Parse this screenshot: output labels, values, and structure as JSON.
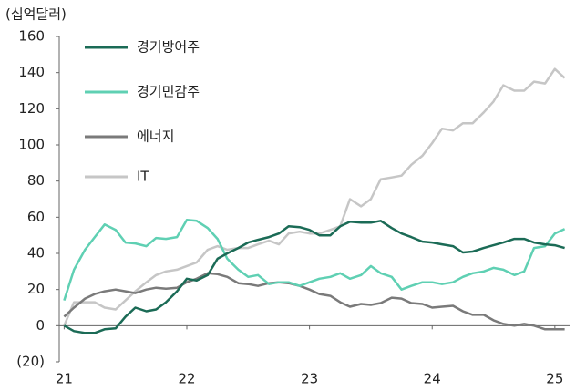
{
  "chart_data": {
    "type": "line",
    "unit_label": "(십억달러)",
    "x": [
      21.0,
      21.08,
      21.17,
      21.25,
      21.33,
      21.42,
      21.5,
      21.58,
      21.67,
      21.75,
      21.83,
      21.92,
      22.0,
      22.08,
      22.17,
      22.25,
      22.33,
      22.42,
      22.5,
      22.58,
      22.67,
      22.75,
      22.83,
      22.92,
      23.0,
      23.08,
      23.17,
      23.25,
      23.33,
      23.42,
      23.5,
      23.58,
      23.67,
      23.75,
      23.83,
      23.92,
      24.0,
      24.08,
      24.17,
      24.25,
      24.33,
      24.42,
      24.5,
      24.58,
      24.67,
      24.75,
      24.83,
      24.92,
      25.0,
      25.08
    ],
    "series": [
      {
        "name": "경기방어주",
        "color": "#1b6b56",
        "values": [
          0,
          -3,
          -4,
          -4,
          -2,
          -1.5,
          5,
          10,
          8,
          9,
          13,
          19,
          26,
          25,
          28,
          37,
          40,
          43,
          46,
          47.5,
          49,
          51,
          55,
          54.5,
          53,
          50,
          50,
          55,
          57.5,
          57,
          57,
          58,
          54,
          51,
          49,
          46.5,
          46,
          45,
          44,
          40.5,
          41,
          43,
          44.5,
          46,
          48,
          48,
          46,
          45,
          44.5,
          43
        ]
      },
      {
        "name": "경기민감주",
        "color": "#5fd0b3",
        "values": [
          14,
          31,
          42,
          49,
          56,
          53,
          46,
          45.5,
          44,
          48.5,
          48,
          49,
          58.5,
          58,
          54,
          48,
          37,
          31,
          27,
          28,
          23,
          24,
          24,
          22,
          24,
          26,
          27,
          29,
          26,
          28,
          33,
          29,
          27,
          20,
          22,
          24,
          24,
          23,
          24,
          27,
          29,
          30,
          32,
          31,
          28,
          30,
          43,
          44,
          51,
          53.5
        ]
      },
      {
        "name": "에너지",
        "color": "#7a7a7a",
        "values": [
          5,
          10,
          15,
          17.5,
          19,
          20,
          19,
          18,
          20,
          21,
          20.5,
          21,
          24,
          26,
          29,
          28.5,
          27,
          23.5,
          23,
          22,
          23.5,
          24,
          23.5,
          22,
          20,
          17.5,
          16.5,
          13,
          10.5,
          12,
          11.5,
          12.5,
          15.5,
          15,
          12.5,
          12,
          10,
          10.5,
          11,
          8,
          6,
          6,
          3,
          1,
          0,
          1,
          0,
          -2,
          -2,
          -2
        ]
      },
      {
        "name": "IT",
        "color": "#c6c6c6",
        "values": [
          0,
          13,
          13,
          13,
          10,
          9,
          14,
          19,
          24,
          28,
          30,
          31,
          33,
          35,
          42,
          44,
          42,
          43,
          43,
          45,
          47,
          45,
          51,
          52,
          51,
          51,
          53,
          55,
          70,
          66,
          70,
          81,
          82,
          83,
          89,
          94,
          101,
          109,
          108,
          112,
          112,
          118,
          124,
          133,
          130,
          130,
          135,
          134,
          142,
          137
        ]
      }
    ],
    "xlim": [
      20.96,
      25.12
    ],
    "xticks": [
      21,
      22,
      23,
      24,
      25
    ],
    "ylim": [
      -20,
      160
    ],
    "yticks": [
      {
        "value": -20,
        "label": "(20)"
      },
      0,
      20,
      40,
      60,
      80,
      100,
      120,
      140,
      160
    ],
    "legend": "upper left"
  }
}
